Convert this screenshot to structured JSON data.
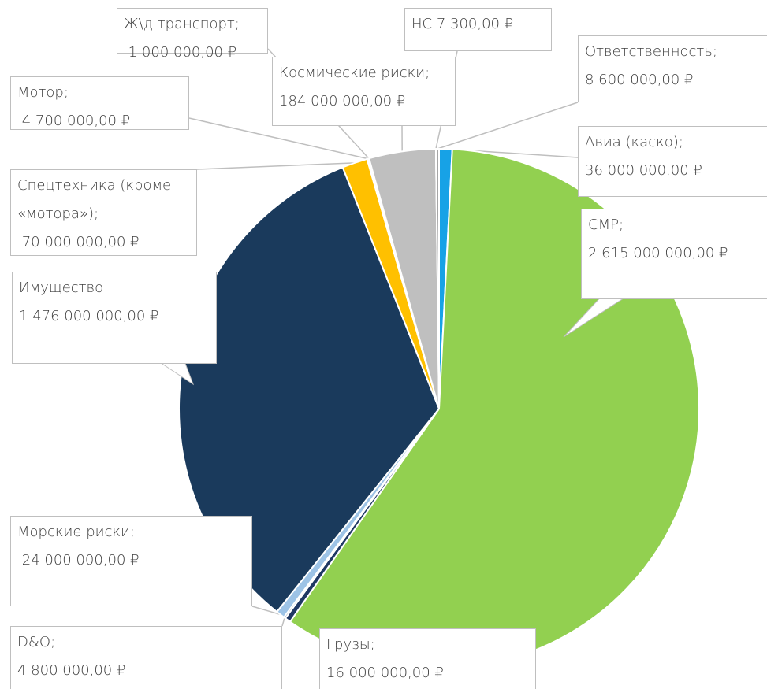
{
  "chart_data": {
    "type": "pie",
    "categories": [
      "Авиа (каско);",
      "СМР;",
      "Грузы;",
      "D&O;",
      "Морские риски;",
      "Имущество",
      "Спецтехника (кроме «мотора»);",
      "Мотор;",
      "Ж\\д транспорт;",
      "Космические риски;",
      "НС",
      "Ответственность;"
    ],
    "values": [
      36000000,
      2615000000,
      16000000,
      4800000,
      24000000,
      1476000000,
      70000000,
      4700000,
      1000000,
      184000000,
      7300,
      8600000
    ],
    "value_labels": [
      "36 000 000,00 ₽",
      "2 615 000 000,00 ₽",
      "16 000 000,00 ₽",
      "4 800 000,00 ₽",
      " 24 000 000,00 ₽",
      "1 476 000 000,00 ₽",
      " 70 000 000,00 ₽",
      " 4 700 000,00 ₽",
      " 1 000 000,00 ₽",
      "184 000 000,00 ₽",
      "7 300,00 ₽",
      "8 600 000,00 ₽"
    ],
    "colors": [
      "#17a2e6",
      "#92d050",
      "#1f3864",
      "#2e4a6e",
      "#9dc3e6",
      "#1a3a5c",
      "#ffc000",
      "#f2f2f2",
      "#d9d9d9",
      "#bfbfbf",
      "#7f7f7f",
      "#a6a6a6"
    ]
  }
}
